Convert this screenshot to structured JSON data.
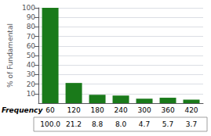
{
  "chart_data": {
    "type": "bar",
    "categories": [
      "60",
      "120",
      "180",
      "240",
      "300",
      "360",
      "420"
    ],
    "values": [
      100.0,
      21.2,
      8.8,
      8.0,
      4.7,
      5.7,
      3.7
    ],
    "value_labels": [
      "100.0",
      "21.2",
      "8.8",
      "8.0",
      "4.7",
      "5.7",
      "3.7"
    ],
    "xlabel": "Frequency",
    "ylabel": "% of Fundamental",
    "color": "#1a7a1a",
    "ylim": [
      0,
      100
    ],
    "yticks": [
      10,
      20,
      30,
      40,
      50,
      60,
      70,
      80,
      90,
      100
    ],
    "grid": true
  }
}
